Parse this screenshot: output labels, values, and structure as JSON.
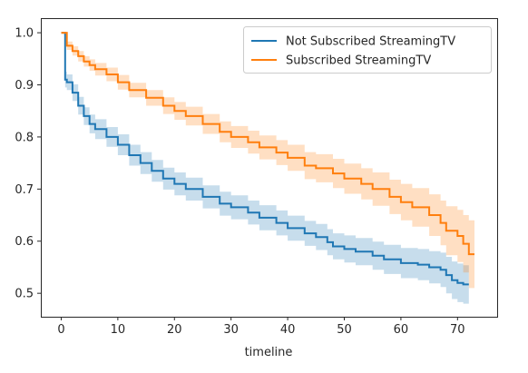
{
  "chart_data": {
    "type": "line",
    "title": "",
    "xlabel": "timeline",
    "ylabel": "",
    "xlim": [
      -3.6,
      77.0
    ],
    "ylim": [
      0.455,
      1.028
    ],
    "xticks": [
      0,
      10,
      20,
      30,
      40,
      50,
      60,
      70
    ],
    "yticks": [
      0.5,
      0.6,
      0.7,
      0.8,
      0.9,
      1.0
    ],
    "ytick_labels": [
      "0.5",
      "0.6",
      "0.7",
      "0.8",
      "0.9",
      "1.0"
    ],
    "grid": false,
    "legend_position": "top-right",
    "series": [
      {
        "name": "Not Subscribed StreamingTV",
        "color": "#1f77b4",
        "step": true,
        "x": [
          0,
          0.7,
          1,
          2,
          3,
          4,
          5,
          6,
          8,
          10,
          12,
          14,
          16,
          18,
          20,
          22,
          25,
          28,
          30,
          33,
          35,
          38,
          40,
          43,
          45,
          47,
          48,
          50,
          52,
          55,
          57,
          60,
          63,
          65,
          67,
          68,
          69,
          70,
          71,
          72
        ],
        "y": [
          1.0,
          0.91,
          0.905,
          0.885,
          0.86,
          0.84,
          0.825,
          0.815,
          0.8,
          0.785,
          0.765,
          0.75,
          0.735,
          0.72,
          0.71,
          0.7,
          0.685,
          0.672,
          0.665,
          0.655,
          0.645,
          0.635,
          0.625,
          0.615,
          0.608,
          0.598,
          0.59,
          0.585,
          0.58,
          0.572,
          0.565,
          0.558,
          0.555,
          0.55,
          0.545,
          0.535,
          0.525,
          0.52,
          0.517,
          0.517
        ],
        "ci_lower": [
          1.0,
          0.895,
          0.89,
          0.869,
          0.843,
          0.823,
          0.807,
          0.796,
          0.781,
          0.765,
          0.745,
          0.729,
          0.714,
          0.699,
          0.688,
          0.678,
          0.663,
          0.649,
          0.642,
          0.632,
          0.621,
          0.611,
          0.601,
          0.591,
          0.583,
          0.573,
          0.565,
          0.559,
          0.554,
          0.545,
          0.537,
          0.529,
          0.525,
          0.519,
          0.512,
          0.5,
          0.489,
          0.483,
          0.48,
          0.48
        ],
        "ci_upper": [
          1.0,
          0.925,
          0.92,
          0.901,
          0.877,
          0.857,
          0.843,
          0.834,
          0.819,
          0.805,
          0.785,
          0.771,
          0.756,
          0.741,
          0.732,
          0.722,
          0.707,
          0.695,
          0.688,
          0.678,
          0.669,
          0.659,
          0.649,
          0.639,
          0.633,
          0.623,
          0.615,
          0.611,
          0.606,
          0.599,
          0.593,
          0.587,
          0.585,
          0.581,
          0.578,
          0.57,
          0.561,
          0.557,
          0.554,
          0.554
        ]
      },
      {
        "name": "Subscribed StreamingTV",
        "color": "#ff7f0e",
        "step": true,
        "x": [
          0,
          1,
          2,
          3,
          4,
          5,
          6,
          8,
          10,
          12,
          15,
          18,
          20,
          22,
          25,
          28,
          30,
          33,
          35,
          38,
          40,
          43,
          45,
          48,
          50,
          53,
          55,
          58,
          60,
          62,
          65,
          67,
          68,
          70,
          71,
          72,
          73
        ],
        "y": [
          1.0,
          0.975,
          0.965,
          0.955,
          0.945,
          0.938,
          0.93,
          0.92,
          0.905,
          0.89,
          0.875,
          0.86,
          0.85,
          0.84,
          0.825,
          0.81,
          0.8,
          0.79,
          0.78,
          0.77,
          0.76,
          0.745,
          0.74,
          0.73,
          0.72,
          0.71,
          0.7,
          0.685,
          0.675,
          0.665,
          0.65,
          0.635,
          0.62,
          0.61,
          0.595,
          0.575,
          0.575
        ],
        "ci_lower": [
          1.0,
          0.967,
          0.956,
          0.945,
          0.935,
          0.927,
          0.918,
          0.907,
          0.891,
          0.876,
          0.86,
          0.844,
          0.833,
          0.822,
          0.806,
          0.79,
          0.779,
          0.768,
          0.757,
          0.746,
          0.735,
          0.719,
          0.713,
          0.702,
          0.691,
          0.68,
          0.668,
          0.652,
          0.64,
          0.628,
          0.61,
          0.592,
          0.573,
          0.56,
          0.54,
          0.51,
          0.51
        ],
        "ci_upper": [
          1.0,
          0.983,
          0.974,
          0.965,
          0.955,
          0.949,
          0.942,
          0.933,
          0.919,
          0.904,
          0.89,
          0.876,
          0.867,
          0.858,
          0.844,
          0.83,
          0.821,
          0.812,
          0.803,
          0.794,
          0.785,
          0.771,
          0.767,
          0.758,
          0.749,
          0.74,
          0.732,
          0.718,
          0.71,
          0.702,
          0.69,
          0.678,
          0.667,
          0.66,
          0.65,
          0.64,
          0.64
        ]
      }
    ]
  }
}
